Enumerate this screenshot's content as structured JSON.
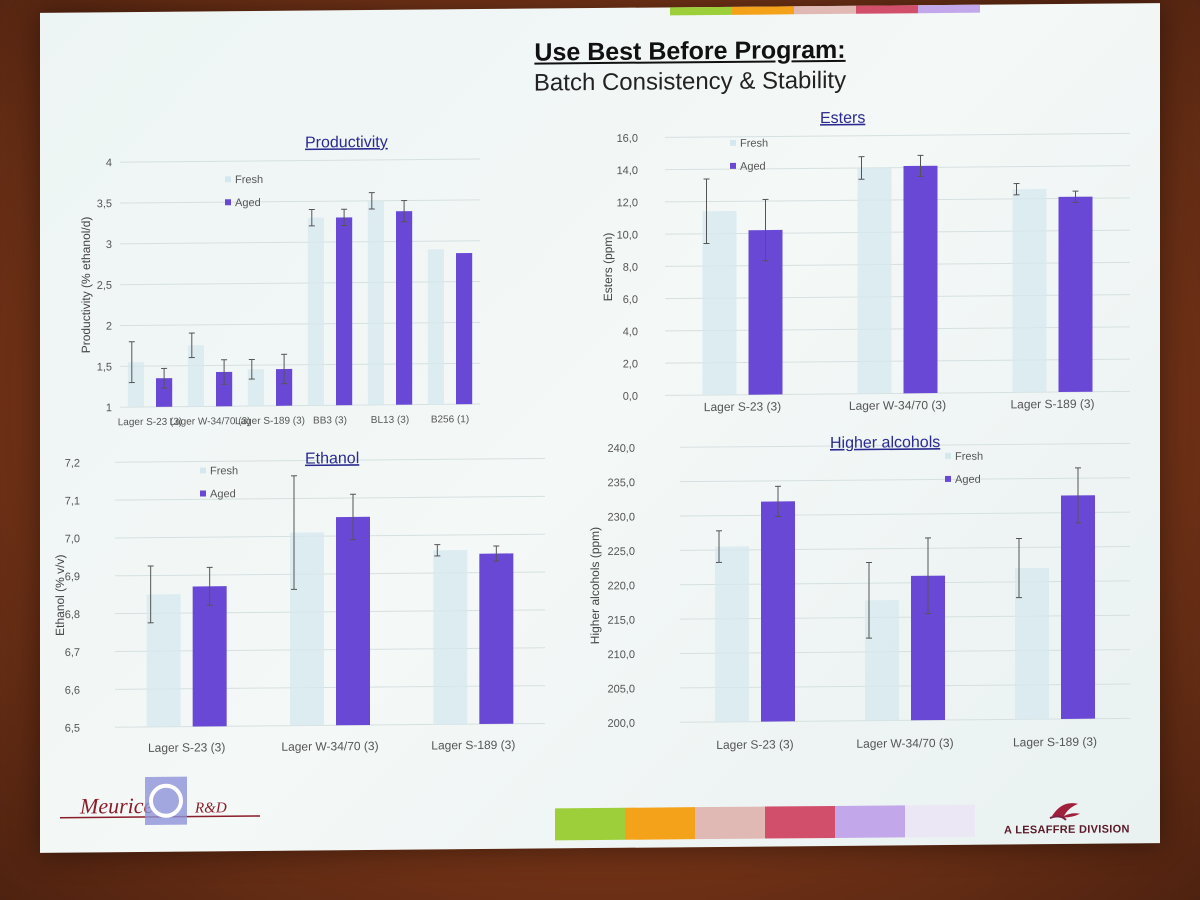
{
  "slide": {
    "title": "Use Best Before Program:",
    "subtitle": "Batch Consistency & Stability",
    "footer_right": "A LESAFFRE DIVISION",
    "logo_left": "Meurice R&D"
  },
  "colors": {
    "fresh": "#d6e8ef",
    "aged": "#6a48d6",
    "strip_colors": [
      "#9dcf3a",
      "#f3a21a",
      "#e0b9b4",
      "#d24f6c",
      "#c2a8ea",
      "#ebe7f5"
    ]
  },
  "chart_data": [
    {
      "id": "productivity",
      "type": "bar",
      "title": "Productivity",
      "ylabel": "Productivity (% ethanol/d)",
      "ylim": [
        1,
        4
      ],
      "yticks": [
        "1",
        "1,5",
        "2",
        "2,5",
        "3",
        "3,5",
        "4"
      ],
      "categories": [
        "Lager S-23 (3)",
        "Lager W-34/70 (3)",
        "Lager S-189 (3)",
        "BB3 (3)",
        "BL13 (3)",
        "B256 (1)"
      ],
      "series": [
        {
          "name": "Fresh",
          "values": [
            1.55,
            1.75,
            1.45,
            3.3,
            3.5,
            2.9
          ],
          "err": [
            0.25,
            0.15,
            0.12,
            0.1,
            0.1,
            0
          ]
        },
        {
          "name": "Aged",
          "values": [
            1.35,
            1.42,
            1.45,
            3.3,
            3.37,
            2.85
          ],
          "err": [
            0.12,
            0.15,
            0.18,
            0.1,
            0.13,
            0
          ]
        }
      ],
      "legend": "top-left"
    },
    {
      "id": "esters",
      "type": "bar",
      "title": "Esters",
      "ylabel": "Esters (ppm)",
      "ylim": [
        0,
        16
      ],
      "yticks": [
        "0,0",
        "2,0",
        "4,0",
        "6,0",
        "8,0",
        "10,0",
        "12,0",
        "14,0",
        "16,0"
      ],
      "categories": [
        "Lager S-23 (3)",
        "Lager W-34/70 (3)",
        "Lager S-189 (3)"
      ],
      "series": [
        {
          "name": "Fresh",
          "values": [
            11.4,
            14.0,
            12.6
          ],
          "err": [
            2.0,
            0.7,
            0.35
          ]
        },
        {
          "name": "Aged",
          "values": [
            10.2,
            14.1,
            12.1
          ],
          "err": [
            1.9,
            0.65,
            0.35
          ]
        }
      ],
      "legend": "top-left"
    },
    {
      "id": "ethanol",
      "type": "bar",
      "title": "Ethanol",
      "ylabel": "Ethanol (% v/v)",
      "ylim": [
        6.5,
        7.2
      ],
      "yticks": [
        "6,5",
        "6,6",
        "6,7",
        "6,8",
        "6,9",
        "7,0",
        "7,1",
        "7,2"
      ],
      "categories": [
        "Lager S-23 (3)",
        "Lager W-34/70 (3)",
        "Lager S-189 (3)"
      ],
      "series": [
        {
          "name": "Fresh",
          "values": [
            6.85,
            7.01,
            6.96
          ],
          "err": [
            0.075,
            0.15,
            0.015
          ]
        },
        {
          "name": "Aged",
          "values": [
            6.87,
            7.05,
            6.95
          ],
          "err": [
            0.05,
            0.06,
            0.02
          ]
        }
      ],
      "legend": "top-left"
    },
    {
      "id": "higher_alcohols",
      "type": "bar",
      "title": "Higher alcohols",
      "ylabel": "Higher alcohols (ppm)",
      "ylim": [
        200,
        240
      ],
      "yticks": [
        "200,0",
        "205,0",
        "210,0",
        "215,0",
        "220,0",
        "225,0",
        "230,0",
        "235,0",
        "240,0"
      ],
      "categories": [
        "Lager S-23 (3)",
        "Lager W-34/70 (3)",
        "Lager S-189 (3)"
      ],
      "series": [
        {
          "name": "Fresh",
          "values": [
            225.5,
            217.5,
            222.0
          ],
          "err": [
            2.3,
            5.5,
            4.3
          ]
        },
        {
          "name": "Aged",
          "values": [
            232.0,
            221.0,
            232.5
          ],
          "err": [
            2.2,
            5.5,
            4.0
          ]
        }
      ],
      "legend": "top-right"
    }
  ]
}
